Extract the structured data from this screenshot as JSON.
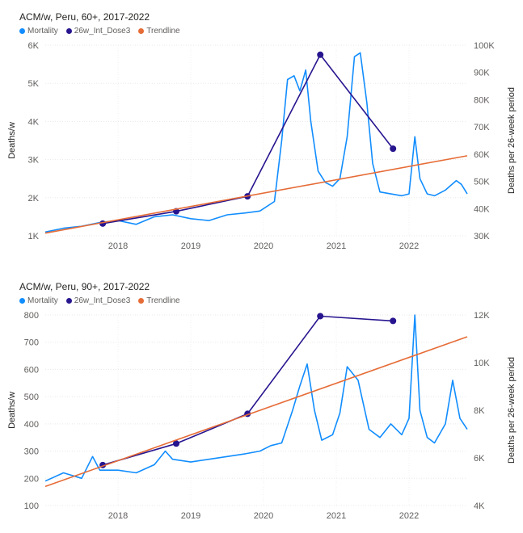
{
  "chart_data": [
    {
      "type": "line",
      "title": "ACM/w, Peru, 60+, 2017-2022",
      "ylabel": "Deaths/w",
      "y2label": "Deaths per 26-week period",
      "ylim": [
        1000,
        6000
      ],
      "y2lim": [
        30000,
        100000
      ],
      "yticks": [
        "1K",
        "2K",
        "3K",
        "4K",
        "5K",
        "6K"
      ],
      "y2ticks": [
        "30K",
        "40K",
        "50K",
        "60K",
        "70K",
        "80K",
        "90K",
        "100K"
      ],
      "xlim": [
        2017.0,
        2022.8
      ],
      "xticks": [
        "2018",
        "2019",
        "2020",
        "2021",
        "2022"
      ],
      "grid": true,
      "legend_position": "top-left",
      "colors": {
        "mortality": "#118DFF",
        "dose": "#27158F",
        "trend": "#E66C37"
      },
      "series": [
        {
          "name": "Mortality",
          "axis": "left",
          "x": [
            2017.0,
            2017.25,
            2017.5,
            2017.75,
            2018.0,
            2018.25,
            2018.5,
            2018.75,
            2019.0,
            2019.25,
            2019.5,
            2019.75,
            2019.95,
            2020.15,
            2020.25,
            2020.33,
            2020.42,
            2020.5,
            2020.58,
            2020.65,
            2020.75,
            2020.85,
            2020.95,
            2021.05,
            2021.15,
            2021.25,
            2021.33,
            2021.42,
            2021.5,
            2021.6,
            2021.75,
            2021.9,
            2022.0,
            2022.08,
            2022.15,
            2022.25,
            2022.35,
            2022.5,
            2022.65,
            2022.72,
            2022.8
          ],
          "y": [
            1100,
            1200,
            1250,
            1350,
            1400,
            1300,
            1500,
            1550,
            1450,
            1400,
            1550,
            1600,
            1650,
            1900,
            3500,
            5100,
            5200,
            4800,
            5350,
            4000,
            2700,
            2400,
            2300,
            2500,
            3600,
            5700,
            5800,
            4500,
            2900,
            2150,
            2100,
            2050,
            2100,
            3600,
            2500,
            2100,
            2050,
            2200,
            2450,
            2350,
            2100
          ]
        },
        {
          "name": "26w_Int_Dose3",
          "axis": "right",
          "x": [
            2017.79,
            2018.8,
            2019.78,
            2020.78,
            2021.78
          ],
          "y": [
            34500,
            39000,
            44500,
            96500,
            62000
          ]
        },
        {
          "name": "Trendline",
          "axis": "left",
          "x": [
            2017.0,
            2022.8
          ],
          "y": [
            1070,
            3100
          ]
        }
      ]
    },
    {
      "type": "line",
      "title": "ACM/w, Peru, 90+, 2017-2022",
      "ylabel": "Deaths/w",
      "y2label": "Deaths per 26-week period",
      "ylim": [
        100,
        800
      ],
      "y2lim": [
        4000,
        12000
      ],
      "yticks": [
        "100",
        "200",
        "300",
        "400",
        "500",
        "600",
        "700",
        "800"
      ],
      "y2ticks": [
        "4K",
        "6K",
        "8K",
        "10K",
        "12K"
      ],
      "xlim": [
        2017.0,
        2022.8
      ],
      "xticks": [
        "2018",
        "2019",
        "2020",
        "2021",
        "2022"
      ],
      "grid": true,
      "legend_position": "top-left",
      "colors": {
        "mortality": "#118DFF",
        "dose": "#27158F",
        "trend": "#E66C37"
      },
      "series": [
        {
          "name": "Mortality",
          "axis": "left",
          "x": [
            2017.0,
            2017.25,
            2017.5,
            2017.65,
            2017.75,
            2018.0,
            2018.25,
            2018.5,
            2018.65,
            2018.75,
            2019.0,
            2019.25,
            2019.5,
            2019.75,
            2019.95,
            2020.1,
            2020.25,
            2020.4,
            2020.5,
            2020.6,
            2020.7,
            2020.8,
            2020.95,
            2021.05,
            2021.15,
            2021.3,
            2021.45,
            2021.6,
            2021.75,
            2021.9,
            2022.0,
            2022.08,
            2022.15,
            2022.25,
            2022.35,
            2022.5,
            2022.6,
            2022.7,
            2022.8
          ],
          "y": [
            190,
            220,
            200,
            280,
            230,
            230,
            220,
            250,
            300,
            270,
            260,
            270,
            280,
            290,
            300,
            320,
            330,
            450,
            540,
            620,
            450,
            340,
            360,
            440,
            610,
            560,
            380,
            350,
            400,
            360,
            420,
            800,
            450,
            350,
            330,
            400,
            560,
            420,
            380
          ]
        },
        {
          "name": "26w_Int_Dose3",
          "axis": "right",
          "x": [
            2017.79,
            2018.8,
            2019.78,
            2020.78,
            2021.78
          ],
          "y": [
            5700,
            6600,
            7850,
            11950,
            11750
          ]
        },
        {
          "name": "Trendline",
          "axis": "left",
          "x": [
            2017.0,
            2022.8
          ],
          "y": [
            170,
            720
          ]
        }
      ]
    }
  ],
  "legend": {
    "mortality_label": "Mortality",
    "dose_label": "26w_Int_Dose3",
    "trend_label": "Trendline"
  }
}
